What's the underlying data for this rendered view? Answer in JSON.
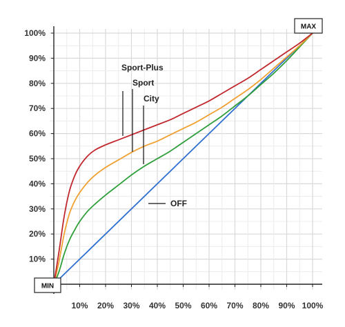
{
  "chart_data": {
    "type": "line",
    "x_tick_labels": [
      "10%",
      "20%",
      "30%",
      "40%",
      "50%",
      "60%",
      "70%",
      "80%",
      "90%",
      "100%"
    ],
    "y_tick_labels": [
      "10%",
      "20%",
      "30%",
      "40%",
      "50%",
      "60%",
      "70%",
      "80%",
      "90%",
      "100%"
    ],
    "xlim": [
      0,
      100
    ],
    "ylim": [
      0,
      100
    ],
    "grid": true,
    "start_label": "MIN",
    "end_label": "MAX",
    "series": [
      {
        "name": "Sport-Plus",
        "color": "#c0272d",
        "x": [
          0,
          2,
          4,
          6,
          8,
          10,
          13,
          16,
          20,
          25,
          30,
          35,
          40,
          45,
          50,
          55,
          60,
          65,
          70,
          75,
          80,
          85,
          90,
          95,
          100
        ],
        "y": [
          0,
          13,
          27,
          37,
          43,
          47,
          51,
          53.5,
          55.5,
          57.5,
          59.5,
          61.5,
          63.5,
          65.5,
          68,
          70.5,
          73,
          76,
          79,
          82,
          85.5,
          89,
          92.5,
          96,
          100
        ]
      },
      {
        "name": "Sport",
        "color": "#f0a030",
        "x": [
          0,
          2,
          4,
          6,
          8,
          10,
          13,
          16,
          20,
          25,
          30,
          35,
          40,
          45,
          50,
          55,
          60,
          65,
          70,
          75,
          80,
          85,
          90,
          95,
          100
        ],
        "y": [
          0,
          9,
          20,
          28,
          33,
          36.5,
          40.5,
          43.5,
          46.5,
          49.5,
          52.5,
          55,
          57,
          59.5,
          62,
          64.5,
          67.5,
          70.5,
          74,
          77.5,
          81.5,
          86,
          90.5,
          95,
          100
        ]
      },
      {
        "name": "City",
        "color": "#2e9e3a",
        "x": [
          0,
          2,
          4,
          6,
          8,
          10,
          13,
          16,
          20,
          25,
          30,
          35,
          40,
          45,
          50,
          55,
          60,
          65,
          70,
          75,
          80,
          85,
          90,
          95,
          100
        ],
        "y": [
          0,
          5,
          12,
          17.5,
          21.5,
          25,
          29,
          32,
          35.5,
          39.5,
          43.5,
          47,
          50,
          53,
          56.5,
          60,
          63.5,
          67,
          71,
          75,
          79.5,
          84,
          89,
          94.5,
          100
        ]
      },
      {
        "name": "OFF",
        "color": "#2f6fd0",
        "x": [
          0,
          100
        ],
        "y": [
          0,
          100
        ]
      }
    ]
  }
}
